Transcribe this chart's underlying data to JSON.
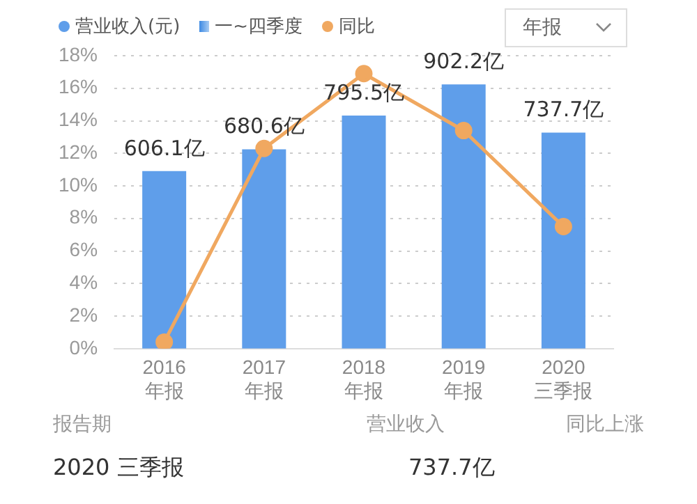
{
  "chart_data": {
    "type": "bar",
    "categories": [
      "2016\n年报",
      "2017\n年报",
      "2018\n年报",
      "2019\n年报",
      "2020\n三季报"
    ],
    "series": [
      {
        "name": "营业收入(元)",
        "color": "#5f9eea",
        "values": [
          606.1,
          680.6,
          795.5,
          902.2,
          737.7
        ],
        "value_labels": [
          "606.1亿",
          "680.6亿",
          "795.5亿",
          "902.2亿",
          "737.7亿"
        ],
        "axis": "y2"
      },
      {
        "name": "同比",
        "type": "line",
        "color": "#f0a860",
        "values": [
          0.4,
          12.3,
          16.9,
          13.4,
          7.5
        ],
        "axis": "y"
      }
    ],
    "ylim": [
      0,
      18
    ],
    "yticks": [
      {
        "value": 0,
        "label": "0%"
      },
      {
        "value": 2,
        "label": "2%"
      },
      {
        "value": 4,
        "label": "4%"
      },
      {
        "value": 6,
        "label": "6%"
      },
      {
        "value": 8,
        "label": "8%"
      },
      {
        "value": 10,
        "label": "10%"
      },
      {
        "value": 12,
        "label": "12%"
      },
      {
        "value": 14,
        "label": "14%"
      },
      {
        "value": 16,
        "label": "16%"
      },
      {
        "value": 18,
        "label": "18%"
      }
    ],
    "grid": "y",
    "legend": "top",
    "marker": "circle",
    "annotations": [
      "年报",
      "一~四季度",
      "报告期",
      "营业收入",
      "同比上涨",
      "2020 三季报",
      "737.7亿"
    ]
  }
}
